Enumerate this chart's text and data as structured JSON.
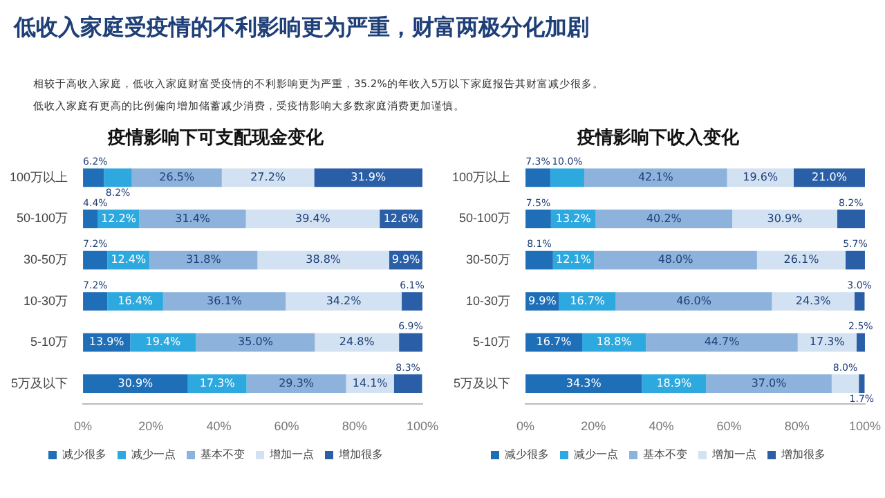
{
  "chart_data": [
    {
      "type": "other",
      "title": "低收入家庭受疫情的不利影响更为严重，财富两极分化加剧",
      "annotations": [
        "相较于高收入家庭，低收入家庭财富受疫情的不利影响更为严重，35.2%的年收入5万以下家庭报告其财富减少很多。",
        "低收入家庭有更高的比例偏向增加储蓄减少消费，受疫情影响大多数家庭消费更加谨慎。"
      ]
    },
    {
      "type": "bar",
      "title": "疫情影响下可支配现金变化",
      "orientation": "horizontal",
      "stacked": true,
      "grid": false,
      "legend": "bottom",
      "categories": [
        "100万以上",
        "50-100万",
        "30-50万",
        "10-30万",
        "5-10万",
        "5万及以下"
      ],
      "xlim": [
        0,
        100
      ],
      "xticks": [
        {
          "value": 0,
          "label": "0%"
        },
        {
          "value": 20,
          "label": "20%"
        },
        {
          "value": 40,
          "label": "40%"
        },
        {
          "value": 60,
          "label": "60%"
        },
        {
          "value": 80,
          "label": "80%"
        },
        {
          "value": 100,
          "label": "100%"
        }
      ],
      "series": [
        {
          "name": "减少很多",
          "color": "#1f6fb8",
          "values": [
            6.2,
            4.4,
            7.2,
            7.2,
            13.9,
            30.9
          ],
          "value_labels": [
            "6.2%",
            "4.4%",
            "7.2%",
            "7.2%",
            "13.9%",
            "30.9%"
          ]
        },
        {
          "name": "减少一点",
          "color": "#2ea9df",
          "values": [
            8.2,
            12.2,
            12.4,
            16.4,
            19.4,
            17.3
          ],
          "value_labels": [
            "8.2%",
            "12.2%",
            "12.4%",
            "16.4%",
            "19.4%",
            "17.3%"
          ]
        },
        {
          "name": "基本不变",
          "color": "#8db3dc",
          "values": [
            26.5,
            31.4,
            31.8,
            36.1,
            35.0,
            29.3
          ],
          "value_labels": [
            "26.5%",
            "31.4%",
            "31.8%",
            "36.1%",
            "35.0%",
            "29.3%"
          ]
        },
        {
          "name": "增加一点",
          "color": "#d2e2f2",
          "values": [
            27.2,
            39.4,
            38.8,
            34.2,
            24.8,
            14.1
          ],
          "value_labels": [
            "27.2%",
            "39.4%",
            "38.8%",
            "34.2%",
            "24.8%",
            "14.1%"
          ]
        },
        {
          "name": "增加很多",
          "color": "#2a5fa8",
          "values": [
            31.9,
            12.6,
            9.9,
            6.1,
            6.9,
            8.3
          ],
          "value_labels": [
            "31.9%",
            "12.6%",
            "9.9%",
            "6.1%",
            "6.9%",
            "8.3%"
          ]
        }
      ]
    },
    {
      "type": "bar",
      "title": "疫情影响下收入变化",
      "orientation": "horizontal",
      "stacked": true,
      "grid": false,
      "legend": "bottom",
      "categories": [
        "100万以上",
        "50-100万",
        "30-50万",
        "10-30万",
        "5-10万",
        "5万及以下"
      ],
      "xlim": [
        0,
        100
      ],
      "xticks": [
        {
          "value": 0,
          "label": "0%"
        },
        {
          "value": 20,
          "label": "20%"
        },
        {
          "value": 40,
          "label": "40%"
        },
        {
          "value": 60,
          "label": "60%"
        },
        {
          "value": 80,
          "label": "80%"
        },
        {
          "value": 100,
          "label": "100%"
        }
      ],
      "series": [
        {
          "name": "减少很多",
          "color": "#1f6fb8",
          "values": [
            7.3,
            7.5,
            8.1,
            9.9,
            16.7,
            34.3
          ],
          "value_labels": [
            "7.3%",
            "7.5%",
            "8.1%",
            "9.9%",
            "16.7%",
            "34.3%"
          ]
        },
        {
          "name": "减少一点",
          "color": "#2ea9df",
          "values": [
            10.0,
            13.2,
            12.1,
            16.7,
            18.8,
            18.9
          ],
          "value_labels": [
            "10.0%",
            "13.2%",
            "12.1%",
            "16.7%",
            "18.8%",
            "18.9%"
          ]
        },
        {
          "name": "基本不变",
          "color": "#8db3dc",
          "values": [
            42.1,
            40.2,
            48.0,
            46.0,
            44.7,
            37.0
          ],
          "value_labels": [
            "42.1%",
            "40.2%",
            "48.0%",
            "46.0%",
            "44.7%",
            "37.0%"
          ]
        },
        {
          "name": "增加一点",
          "color": "#d2e2f2",
          "values": [
            19.6,
            30.9,
            26.1,
            24.3,
            17.3,
            8.0
          ],
          "value_labels": [
            "19.6%",
            "30.9%",
            "26.1%",
            "24.3%",
            "17.3%",
            "8.0%"
          ]
        },
        {
          "name": "增加很多",
          "color": "#2a5fa8",
          "values": [
            21.0,
            8.2,
            5.7,
            3.0,
            2.5,
            1.7
          ],
          "value_labels": [
            "21.0%",
            "8.2%",
            "5.7%",
            "3.0%",
            "2.5%",
            "1.7%"
          ]
        }
      ]
    }
  ]
}
